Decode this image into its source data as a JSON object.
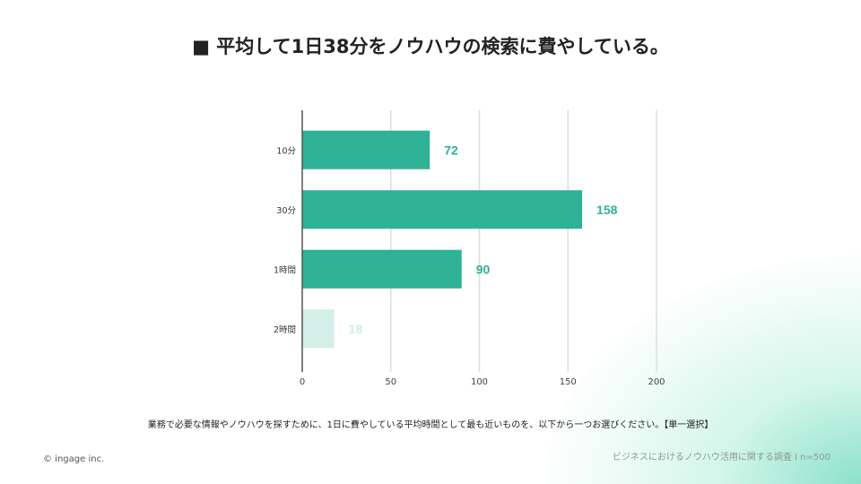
{
  "title": "■ 平均して1日38分をノウハウの検索に費やしている。",
  "question": "業務で必要な情報やノウハウを探すために、1日に費やしている平均時間として最も近いものを、以下から一つお選びください。【単一選択】",
  "copyright": "© ingage inc.",
  "source": "ビジネスにおけるノウハウ活用に関する調査 I n=500",
  "colors": {
    "bar": "#2fb195",
    "bar_light": "#d3efe8",
    "label": "#2fb195",
    "label_light": "#cdeee5",
    "grid": "#dddddd",
    "axis": "#555555"
  },
  "chart_data": {
    "type": "bar",
    "orientation": "horizontal",
    "categories": [
      "10分",
      "30分",
      "1時間",
      "2時間"
    ],
    "values": [
      72,
      158,
      90,
      18
    ],
    "xlim": [
      0,
      200
    ],
    "xticks": [
      0,
      50,
      100,
      150,
      200
    ],
    "grid": true
  }
}
